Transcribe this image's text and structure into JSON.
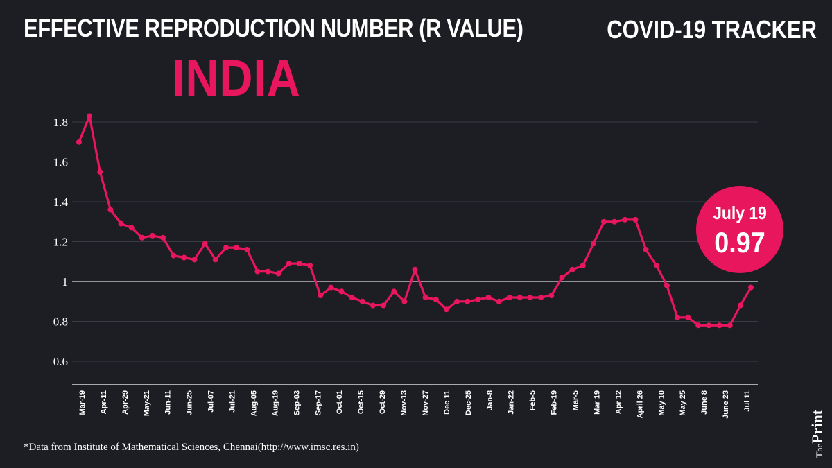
{
  "header": {
    "title": "EFFECTIVE REPRODUCTION NUMBER (R VALUE)",
    "tracker": "COVID-19 TRACKER",
    "country": "INDIA"
  },
  "callout": {
    "date": "July 19",
    "value": "0.97"
  },
  "footer": {
    "source": "*Data from Institute of Mathematical Sciences, Chennai(http://www.imsc.res.in)",
    "brand_the": "The",
    "brand_print": "Print"
  },
  "colors": {
    "background": "#1d1d24",
    "accent": "#e8175d",
    "text": "#ffffff",
    "grid": "#3a3a44"
  },
  "chart_data": {
    "type": "line",
    "title": "EFFECTIVE REPRODUCTION NUMBER (R VALUE)",
    "xlabel": "",
    "ylabel": "",
    "ylim": [
      0.5,
      1.9
    ],
    "yticks": [
      0.6,
      0.8,
      1,
      1.2,
      1.4,
      1.6,
      1.8
    ],
    "grid": true,
    "x_tick_labels": [
      "Mar-19",
      "Apr-11",
      "Apr-29",
      "May-21",
      "Jun-11",
      "Jun-25",
      "Jul-07",
      "Jul-21",
      "Aug-05",
      "Aug-19",
      "Sep-03",
      "Sep-17",
      "Oct-01",
      "Oct-15",
      "Oct-29",
      "Nov-13",
      "Nov-27",
      "Dec 11",
      "Dec-25",
      "Jan-8",
      "Jan-22",
      "Feb-5",
      "Feb-19",
      "Mar-5",
      "Mar 19",
      "Apr 12",
      "April 26",
      "May 10",
      "May 25",
      "June 8",
      "June 23",
      "Jul 11"
    ],
    "series": [
      {
        "values": [
          1.7,
          1.83,
          1.55,
          1.36,
          1.29,
          1.27,
          1.22,
          1.23,
          1.22,
          1.13,
          1.12,
          1.11,
          1.19,
          1.11,
          1.17,
          1.17,
          1.16,
          1.05,
          1.05,
          1.04,
          1.09,
          1.09,
          1.08,
          0.93,
          0.97,
          0.95,
          0.92,
          0.9,
          0.88,
          0.88,
          0.95,
          0.9,
          1.06,
          0.92,
          0.91,
          0.86,
          0.9,
          0.9,
          0.91,
          0.92,
          0.9,
          0.92,
          0.92,
          0.92,
          0.92,
          0.93,
          1.02,
          1.06,
          1.08,
          1.19,
          1.3,
          1.3,
          1.31,
          1.31,
          1.16,
          1.08,
          0.98,
          0.82,
          0.82,
          0.78,
          0.78,
          0.78,
          0.78,
          0.88,
          0.97
        ]
      }
    ]
  }
}
